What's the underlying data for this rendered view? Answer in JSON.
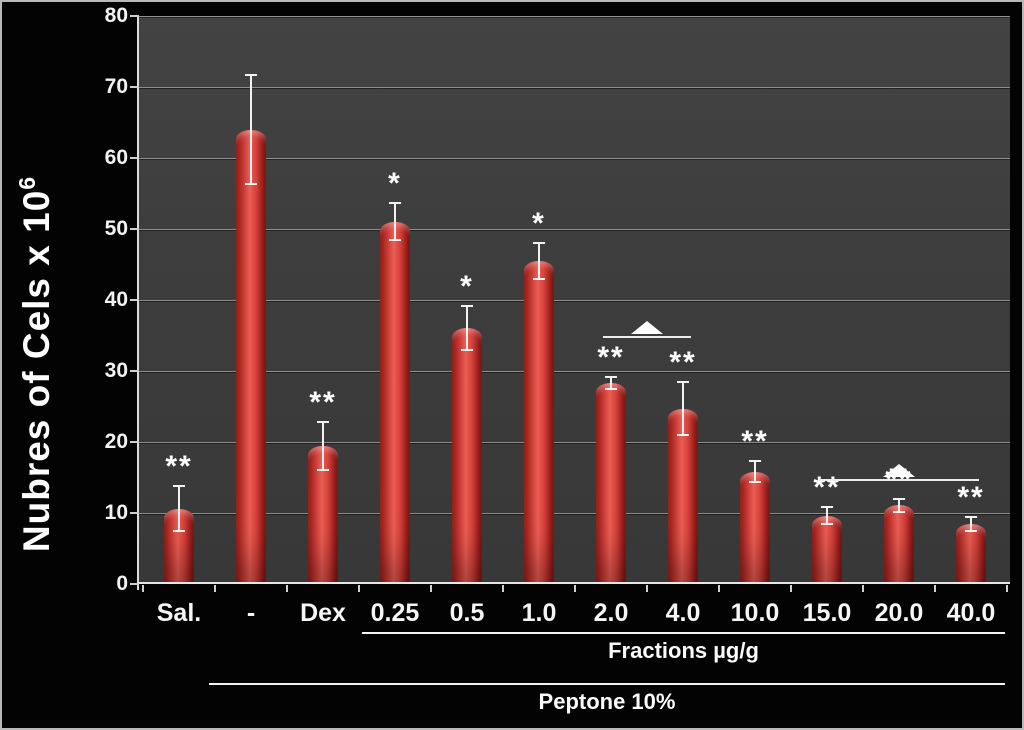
{
  "figure": {
    "ylabel_base": "Nubres of Cels x 10",
    "ylabel_exponent": "6"
  },
  "chart_data": {
    "type": "bar",
    "title": "",
    "ylabel": "Nubres of Cels x 10^6",
    "xlabel": "",
    "ylim": [
      0,
      80
    ],
    "yticks": [
      0,
      10,
      20,
      30,
      40,
      50,
      60,
      70,
      80
    ],
    "grid": true,
    "legend": false,
    "bar_color": "#d13b35",
    "plot_background": "#3c3c3c",
    "outer_background": "#000000",
    "error_bar_color": "#f2f2f2",
    "categories": [
      "Sal.",
      "-",
      "Dex",
      "0.25",
      "0.5",
      "1.0",
      "2.0",
      "4.0",
      "10.0",
      "15.0",
      "20.0",
      "40.0"
    ],
    "values": [
      10.6,
      64.0,
      19.4,
      51.0,
      36.0,
      45.5,
      28.3,
      24.7,
      15.8,
      9.6,
      11.1,
      8.4
    ],
    "errors": [
      3.2,
      7.7,
      3.4,
      2.6,
      3.1,
      2.5,
      0.9,
      3.7,
      1.5,
      1.2,
      0.9,
      1.0
    ],
    "significance": [
      "**",
      "",
      "**",
      "*",
      "*",
      "*",
      "**",
      "**",
      "**",
      "**",
      "**",
      "**"
    ],
    "comparison_brackets": [
      {
        "from": "2.0",
        "to": "4.0",
        "marker": "triangle-up",
        "y_value": 35.0
      },
      {
        "from": "15.0",
        "to": "40.0",
        "marker": "triangle-up",
        "y_value": 14.8
      }
    ],
    "group_spans": [
      {
        "label": "Fractions µg/g",
        "from": "0.25",
        "to": "40.0"
      },
      {
        "label": "Peptone 10%",
        "from": "-",
        "to": "40.0"
      }
    ]
  }
}
